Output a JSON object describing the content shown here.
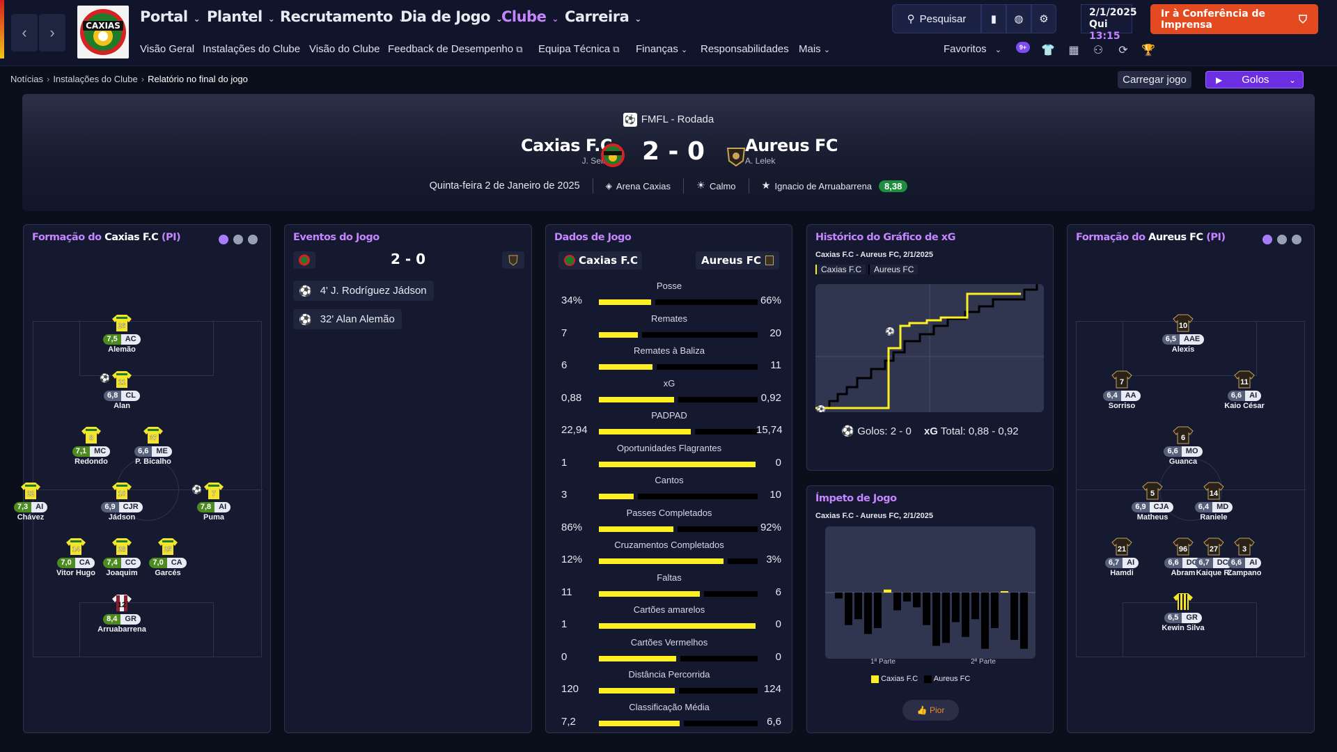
{
  "nav": {
    "back_icon": "chevron-left-icon",
    "forward_icon": "chevron-right-icon",
    "main_menu": [
      "Portal",
      "Plantel",
      "Recrutamento",
      "Dia de Jogo",
      "Clube",
      "Carreira"
    ],
    "active_main": "Clube",
    "sub_menu": [
      "Visão Geral",
      "Instalações do Clube",
      "Visão do Clube",
      "Feedback de Desempenho",
      "Equipa Técnica",
      "Finanças",
      "Responsabilidades",
      "Mais"
    ],
    "search_label": "Pesquisar",
    "favorites_label": "Favoritos",
    "notif_badge": "9+",
    "date_line1": "2/1/2025",
    "date_day": "Qui",
    "date_time": "13:15",
    "press_label": "Ir à Conferência de Imprensa",
    "club_logo_text": "CAXIAS",
    "accent": "#c585ff",
    "press_color": "#e44a1f"
  },
  "breadcrumb": [
    "Notícias",
    "Instalações do Clube",
    "Relatório no final do jogo"
  ],
  "actions": {
    "load_label": "Carregar jogo",
    "golos_label": "Golos"
  },
  "match": {
    "competition": "FMFL - Rodada",
    "home": "Caxias F.C",
    "home_manager": "J. Selau",
    "away": "Aureus FC",
    "away_manager": "A. Lelek",
    "score": "2 - 0",
    "date": "Quinta-feira 2 de Janeiro de 2025",
    "stadium": "Arena Caxias",
    "weather": "Calmo",
    "mvp": "Ignacio de Arruabarrena",
    "mvp_rating": "8,38"
  },
  "home_formation": {
    "title_prefix": "Formação do",
    "team": "Caxias F.C",
    "suffix": "(PI)",
    "players": [
      {
        "name": "Alemão",
        "rating": "7,5",
        "pos": "AC",
        "num": "26"
      },
      {
        "name": "Alan",
        "rating": "6,8",
        "pos": "CL",
        "num": "11"
      },
      {
        "name": "Redondo",
        "rating": "7,1",
        "pos": "MC",
        "num": "8"
      },
      {
        "name": "P. Bicalho",
        "rating": "6,6",
        "pos": "ME",
        "num": "37"
      },
      {
        "name": "Chávez",
        "rating": "7,3",
        "pos": "AI",
        "num": "22"
      },
      {
        "name": "Jádson",
        "rating": "6,9",
        "pos": "CJR",
        "num": "10"
      },
      {
        "name": "Puma",
        "rating": "7,8",
        "pos": "AI",
        "num": "7"
      },
      {
        "name": "Vitor Hugo",
        "rating": "7,0",
        "pos": "CA",
        "num": "14"
      },
      {
        "name": "Joaquim",
        "rating": "7,4",
        "pos": "CC",
        "num": "28"
      },
      {
        "name": "Garcés",
        "rating": "7,0",
        "pos": "CA",
        "num": "25"
      },
      {
        "name": "Arruabarrena",
        "rating": "8,4",
        "pos": "GR",
        "num": "12"
      }
    ]
  },
  "events": {
    "title": "Eventos do Jogo",
    "score": "2 - 0",
    "items": [
      "4' J. Rodríguez Jádson",
      "32' Alan Alemão"
    ]
  },
  "stats": {
    "title": "Dados de Jogo",
    "home": "Caxias F.C",
    "away": "Aureus FC",
    "rows": [
      {
        "label": "Posse",
        "home": "34%",
        "away": "66%",
        "h": 34,
        "a": 66
      },
      {
        "label": "Remates",
        "home": "7",
        "away": "20",
        "h": 7,
        "a": 20
      },
      {
        "label": "Remates à Baliza",
        "home": "6",
        "away": "11",
        "h": 6,
        "a": 11
      },
      {
        "label": "xG",
        "home": "0,88",
        "away": "0,92",
        "h": 0.88,
        "a": 0.92
      },
      {
        "label": "PADPAD",
        "home": "22,94",
        "away": "15,74",
        "h": 22.94,
        "a": 15.74
      },
      {
        "label": "Oportunidades Flagrantes",
        "home": "1",
        "away": "0",
        "h": 1,
        "a": 0
      },
      {
        "label": "Cantos",
        "home": "3",
        "away": "10",
        "h": 3,
        "a": 10
      },
      {
        "label": "Passes Completados",
        "home": "86%",
        "away": "92%",
        "h": 86,
        "a": 92
      },
      {
        "label": "Cruzamentos Completados",
        "home": "12%",
        "away": "3%",
        "h": 12,
        "a": 3
      },
      {
        "label": "Faltas",
        "home": "11",
        "away": "6",
        "h": 11,
        "a": 6
      },
      {
        "label": "Cartões amarelos",
        "home": "1",
        "away": "0",
        "h": 1,
        "a": 0
      },
      {
        "label": "Cartões Vermelhos",
        "home": "0",
        "away": "0",
        "h": 0,
        "a": 0
      },
      {
        "label": "Distância Percorrida",
        "home": "120",
        "away": "124",
        "h": 120,
        "a": 124
      },
      {
        "label": "Classificação Média",
        "home": "7,2",
        "away": "6,6",
        "h": 7.2,
        "a": 6.6
      }
    ]
  },
  "xg_chart": {
    "title": "Histórico do Gráfico de xG",
    "subtitle": "Caxias F.C - Aureus FC, 2/1/2025",
    "legend": [
      "Caxias F.C",
      "Aureus FC"
    ],
    "goals_label": "Golos:",
    "goals_value": "2 - 0",
    "xg_label": "xG",
    "xg_total_label": "Total:",
    "xg_total_value": "0,88 - 0,92",
    "home_color": "#fff021",
    "away_color": "#000000"
  },
  "momentum": {
    "title": "Ímpeto de Jogo",
    "subtitle": "Caxias F.C - Aureus FC, 2/1/2025",
    "half1": "1ª Parte",
    "half2": "2ª Parte",
    "legend": [
      "Caxias F.C",
      "Aureus FC"
    ],
    "button_label": "Pior",
    "bars": [
      -0.1,
      -0.55,
      -0.45,
      -0.7,
      -0.6,
      0.05,
      -0.3,
      -0.15,
      -0.25,
      -0.55,
      -0.9,
      -0.85,
      -0.5,
      -0.75,
      -0.45,
      -0.95,
      -0.6,
      0.02,
      -0.8,
      -0.95
    ]
  },
  "away_formation": {
    "title_prefix": "Formação do",
    "team": "Aureus FC",
    "suffix": "(PI)",
    "players": [
      {
        "name": "Alexis",
        "rating": "6,5",
        "pos": "AAE",
        "num": "10"
      },
      {
        "name": "Sorriso",
        "rating": "6,4",
        "pos": "AA",
        "num": "7"
      },
      {
        "name": "Kaio César",
        "rating": "6,6",
        "pos": "AI",
        "num": "11"
      },
      {
        "name": "Guanca",
        "rating": "6,6",
        "pos": "MO",
        "num": "6"
      },
      {
        "name": "Matheus",
        "rating": "6,9",
        "pos": "CJA",
        "num": "5"
      },
      {
        "name": "Raniele",
        "rating": "6,4",
        "pos": "MD",
        "num": "14"
      },
      {
        "name": "Hamdi",
        "rating": "6,7",
        "pos": "AI",
        "num": "21"
      },
      {
        "name": "Abram",
        "rating": "6,6",
        "pos": "DC",
        "num": "96"
      },
      {
        "name": "Kaique R.",
        "rating": "6,7",
        "pos": "DC",
        "num": "27"
      },
      {
        "name": "Zampano",
        "rating": "6,6",
        "pos": "AI",
        "num": "3"
      },
      {
        "name": "Kewin Silva",
        "rating": "6,5",
        "pos": "GR",
        "num": "1"
      }
    ]
  }
}
